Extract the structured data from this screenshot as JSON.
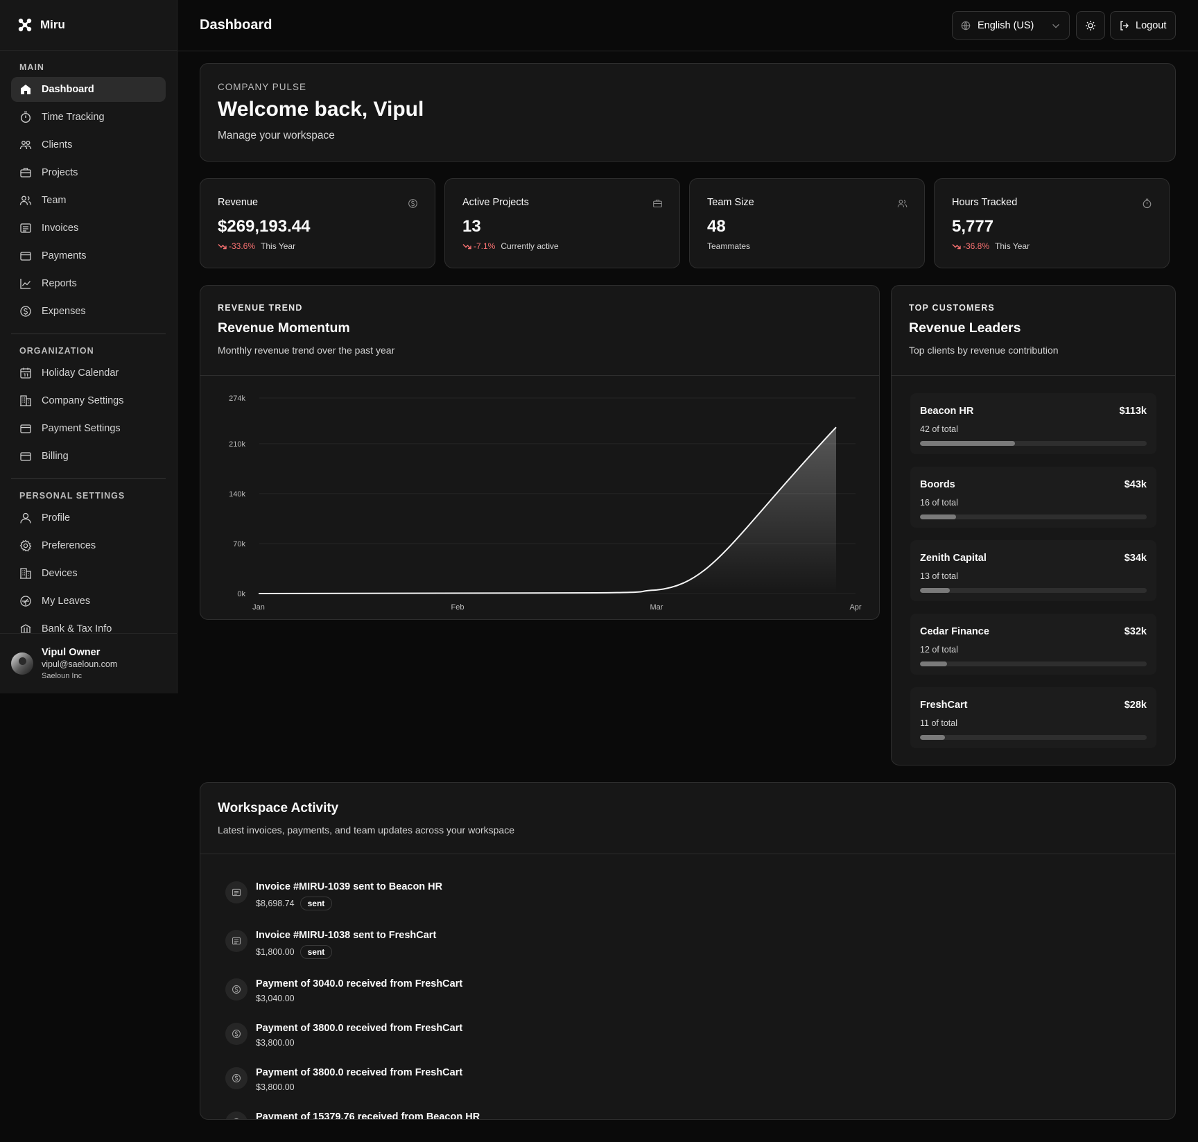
{
  "app": {
    "name": "Miru"
  },
  "sidebar": {
    "sections": [
      {
        "label": "MAIN",
        "items": [
          {
            "label": "Dashboard",
            "icon": "home-icon",
            "active": true
          },
          {
            "label": "Time Tracking",
            "icon": "stopwatch-icon"
          },
          {
            "label": "Clients",
            "icon": "clients-icon"
          },
          {
            "label": "Projects",
            "icon": "briefcase-icon"
          },
          {
            "label": "Team",
            "icon": "team-icon"
          },
          {
            "label": "Invoices",
            "icon": "invoice-icon"
          },
          {
            "label": "Payments",
            "icon": "wallet-icon"
          },
          {
            "label": "Reports",
            "icon": "chart-line-icon"
          },
          {
            "label": "Expenses",
            "icon": "dollar-circle-icon"
          }
        ]
      },
      {
        "label": "ORGANIZATION",
        "items": [
          {
            "label": "Holiday Calendar",
            "icon": "calendar-icon"
          },
          {
            "label": "Company Settings",
            "icon": "building-icon"
          },
          {
            "label": "Payment Settings",
            "icon": "wallet-icon"
          },
          {
            "label": "Billing",
            "icon": "wallet-icon"
          }
        ]
      },
      {
        "label": "PERSONAL SETTINGS",
        "items": [
          {
            "label": "Profile",
            "icon": "user-icon"
          },
          {
            "label": "Preferences",
            "icon": "gear-icon"
          },
          {
            "label": "Devices",
            "icon": "building-icon"
          },
          {
            "label": "My Leaves",
            "icon": "leaf-icon"
          },
          {
            "label": "Bank & Tax Info",
            "icon": "bank-icon"
          }
        ]
      }
    ]
  },
  "user": {
    "name": "Vipul Owner",
    "email": "vipul@saeloun.com",
    "org": "Saeloun Inc"
  },
  "header": {
    "title": "Dashboard",
    "language": "English (US)",
    "logout_label": "Logout"
  },
  "pulse": {
    "eyebrow": "COMPANY PULSE",
    "title": "Welcome back, Vipul",
    "subtitle": "Manage your workspace"
  },
  "stats": [
    {
      "label": "Revenue",
      "value": "$269,193.44",
      "trend": "-33.6%",
      "note": "This Year",
      "icon": "dollar-circle-icon"
    },
    {
      "label": "Active Projects",
      "value": "13",
      "trend": "-7.1%",
      "note": "Currently active",
      "icon": "briefcase-icon"
    },
    {
      "label": "Team Size",
      "value": "48",
      "trend": "",
      "note": "Teammates",
      "icon": "team-icon"
    },
    {
      "label": "Hours Tracked",
      "value": "5,777",
      "trend": "-36.8%",
      "note": "This Year",
      "icon": "stopwatch-icon"
    }
  ],
  "revenue_trend": {
    "eyebrow": "REVENUE TREND",
    "title": "Revenue Momentum",
    "subtitle": "Monthly revenue trend over the past year"
  },
  "chart_data": {
    "type": "area",
    "title": "Revenue Momentum",
    "x": [
      "Jan",
      "Feb",
      "Mar",
      "Apr"
    ],
    "y_ticks": [
      "0k",
      "70k",
      "140k",
      "210k",
      "274k"
    ],
    "ylim": [
      0,
      274
    ],
    "series": [
      {
        "values": [
          0,
          0,
          5,
          233
        ]
      }
    ],
    "grid": true
  },
  "leaders": {
    "eyebrow": "TOP CUSTOMERS",
    "title": "Revenue Leaders",
    "subtitle": "Top clients by revenue contribution",
    "items": [
      {
        "name": "Beacon HR",
        "amount": "$113k",
        "share": "42 of total",
        "pct": 42
      },
      {
        "name": "Boords",
        "amount": "$43k",
        "share": "16 of total",
        "pct": 16
      },
      {
        "name": "Zenith Capital",
        "amount": "$34k",
        "share": "13 of total",
        "pct": 13
      },
      {
        "name": "Cedar Finance",
        "amount": "$32k",
        "share": "12 of total",
        "pct": 12
      },
      {
        "name": "FreshCart",
        "amount": "$28k",
        "share": "11 of total",
        "pct": 11
      }
    ]
  },
  "activity": {
    "title": "Workspace Activity",
    "subtitle": "Latest invoices, payments, and team updates across your workspace",
    "items": [
      {
        "kind": "invoice",
        "title": "Invoice #MIRU-1039 sent to Beacon HR",
        "amount": "$8,698.74",
        "status": "sent"
      },
      {
        "kind": "invoice",
        "title": "Invoice #MIRU-1038 sent to FreshCart",
        "amount": "$1,800.00",
        "status": "sent"
      },
      {
        "kind": "payment",
        "title": "Payment of 3040.0 received from FreshCart",
        "amount": "$3,040.00",
        "status": ""
      },
      {
        "kind": "payment",
        "title": "Payment of 3800.0 received from FreshCart",
        "amount": "$3,800.00",
        "status": ""
      },
      {
        "kind": "payment",
        "title": "Payment of 3800.0 received from FreshCart",
        "amount": "$3,800.00",
        "status": ""
      },
      {
        "kind": "payment",
        "title": "Payment of 15379.76 received from Beacon HR",
        "amount": "",
        "status": ""
      }
    ]
  }
}
